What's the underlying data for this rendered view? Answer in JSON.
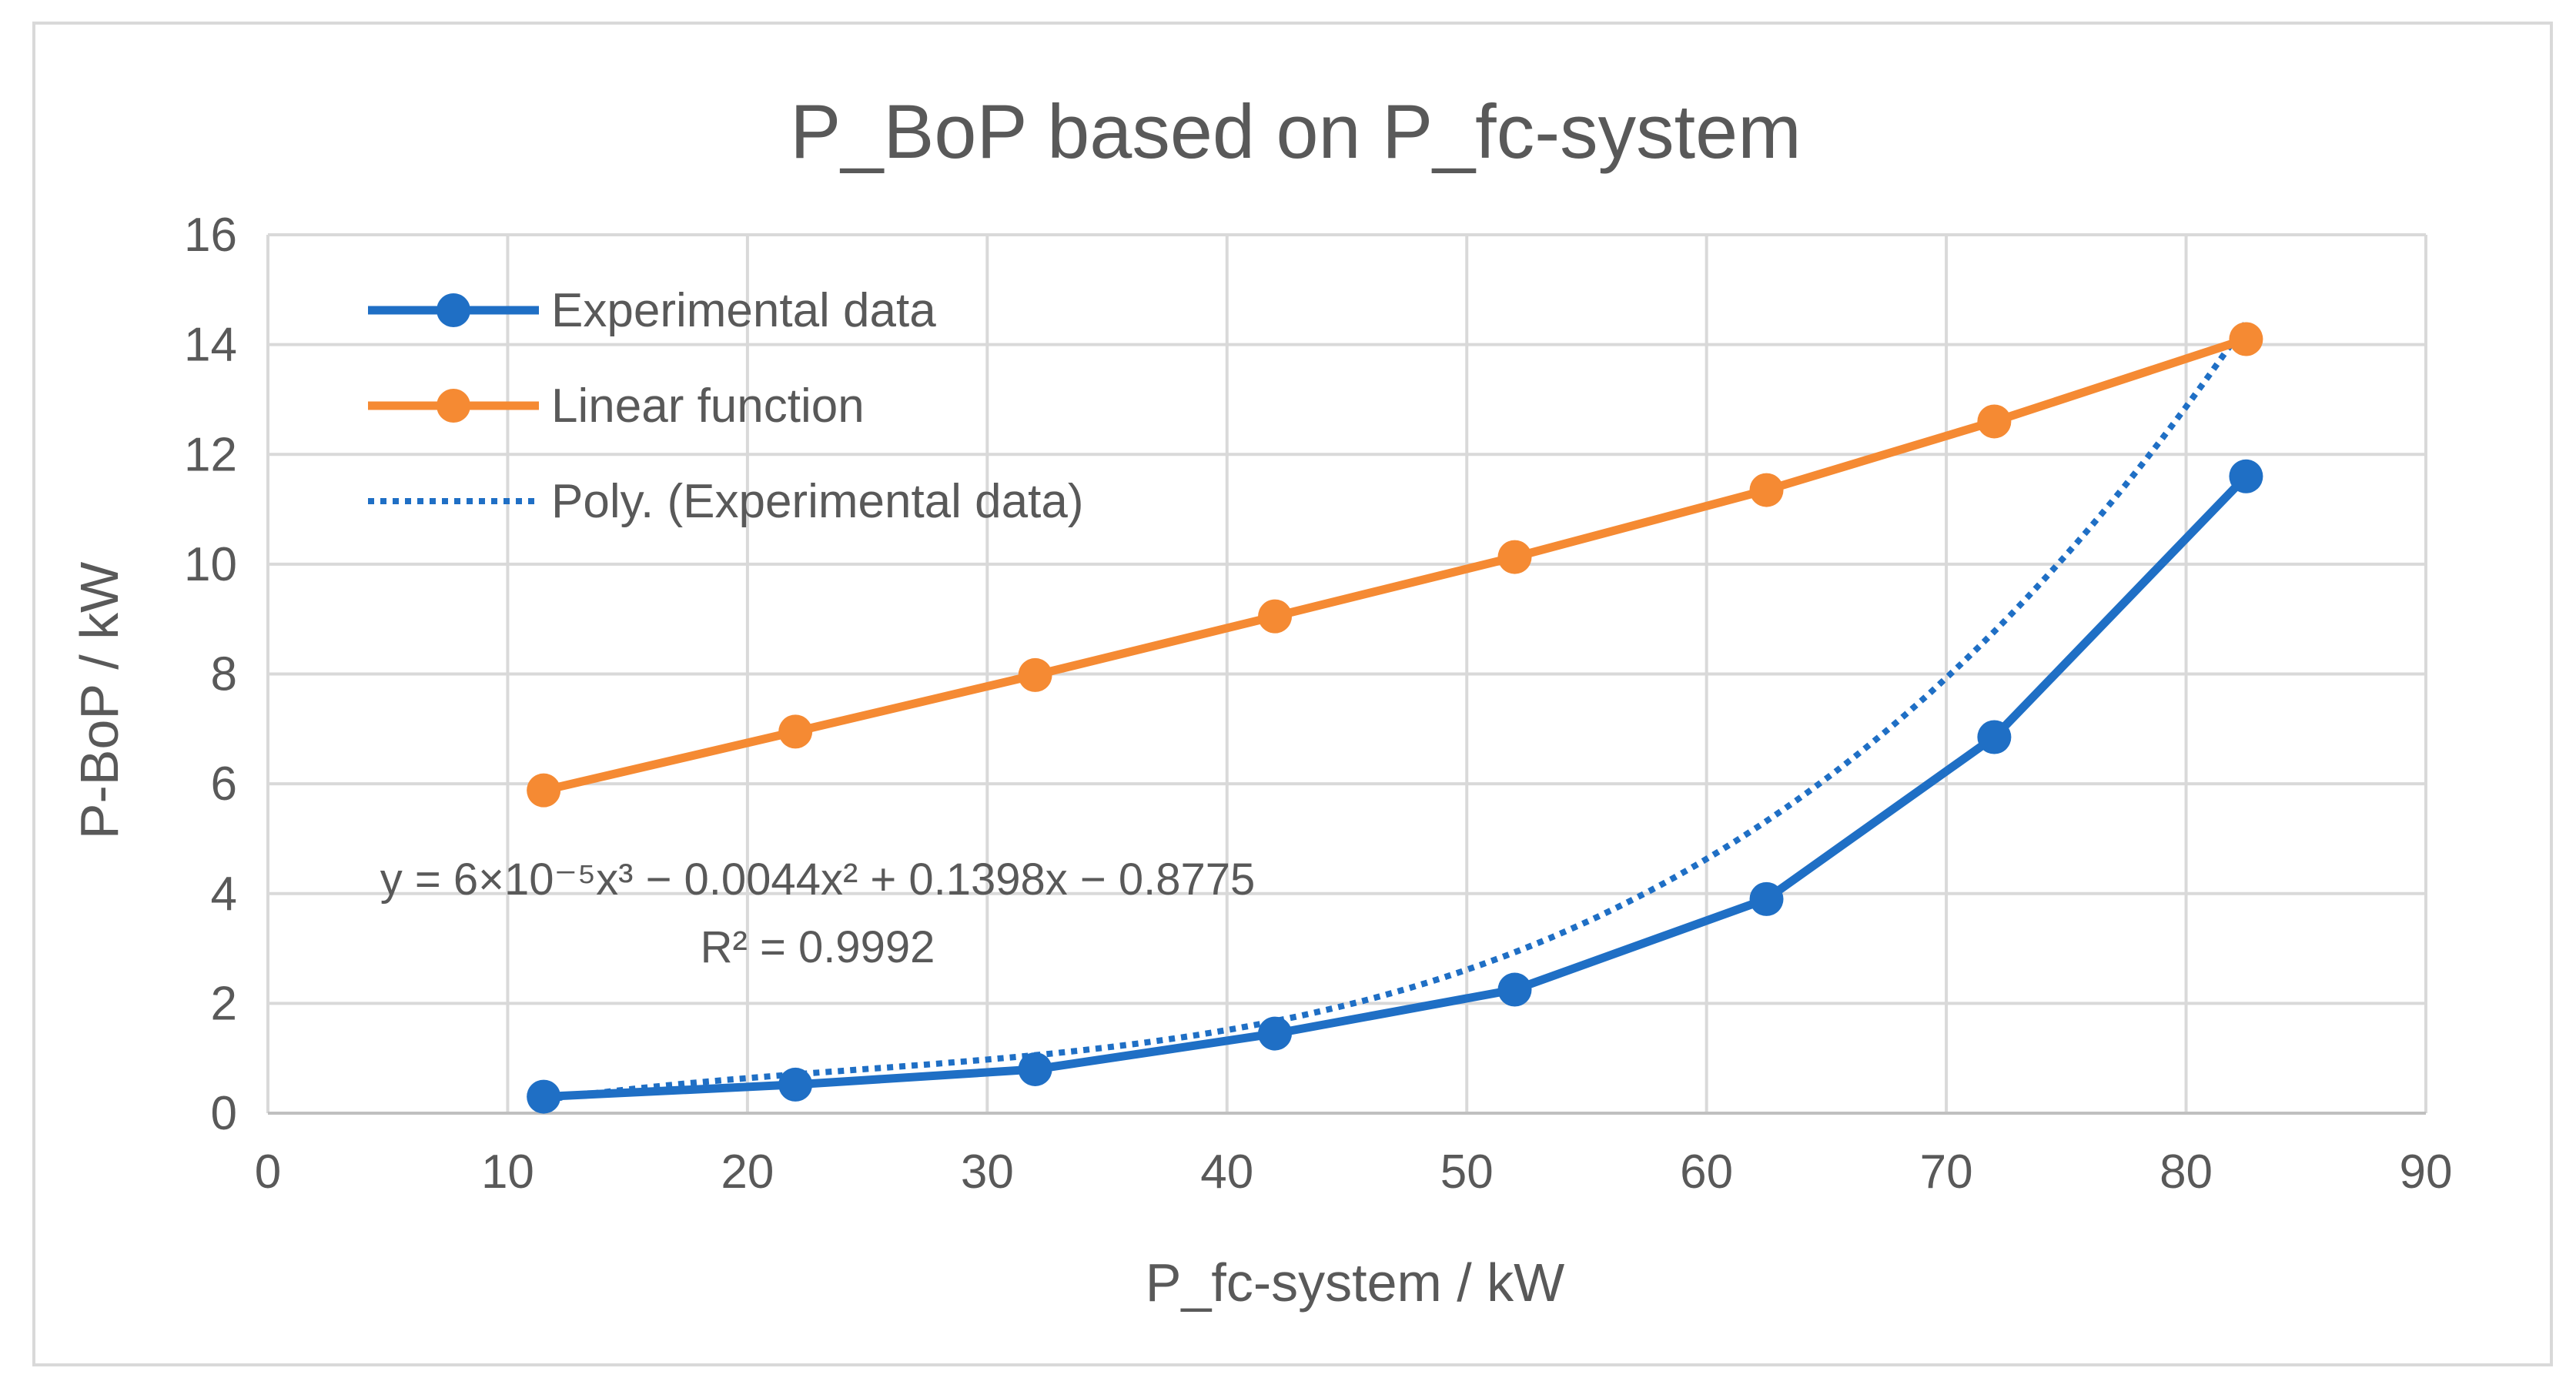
{
  "chart_data": {
    "type": "line",
    "title": "P_BoP based on P_fc-system",
    "xlabel": "P_fc-system / kW",
    "ylabel": "P-BoP / kW",
    "xlim": [
      0,
      90
    ],
    "ylim": [
      0,
      16
    ],
    "xticks": [
      0,
      10,
      20,
      30,
      40,
      50,
      60,
      70,
      80,
      90
    ],
    "yticks": [
      0,
      2,
      4,
      6,
      8,
      10,
      12,
      14,
      16
    ],
    "grid": true,
    "legend_position": "top-left",
    "series": [
      {
        "name": "Experimental data",
        "color": "#1F6FC5",
        "style": "solid-markers",
        "x": [
          11.5,
          22,
          32,
          42,
          52,
          62.5,
          72,
          82.5
        ],
        "y": [
          0.3,
          0.52,
          0.8,
          1.45,
          2.25,
          3.9,
          6.85,
          11.6
        ]
      },
      {
        "name": "Linear function",
        "color": "#F58A33",
        "style": "solid-markers",
        "x": [
          11.5,
          22,
          32,
          42,
          52,
          62.5,
          72,
          82.5
        ],
        "y": [
          5.88,
          6.95,
          7.98,
          9.05,
          10.13,
          11.35,
          12.6,
          14.1
        ]
      },
      {
        "name": "Poly. (Experimental data)",
        "color": "#1F6FC5",
        "style": "dotted",
        "trendline": {
          "type": "poly3",
          "coefficients": [
            6e-05,
            -0.0044,
            0.1398,
            -0.8775
          ],
          "x_range": [
            11.5,
            82.5
          ]
        }
      }
    ],
    "annotations": {
      "equation": "y = 6×10⁻⁵x³ − 0.0044x² + 0.1398x − 0.8775",
      "r_squared": "R² = 0.9992"
    }
  }
}
